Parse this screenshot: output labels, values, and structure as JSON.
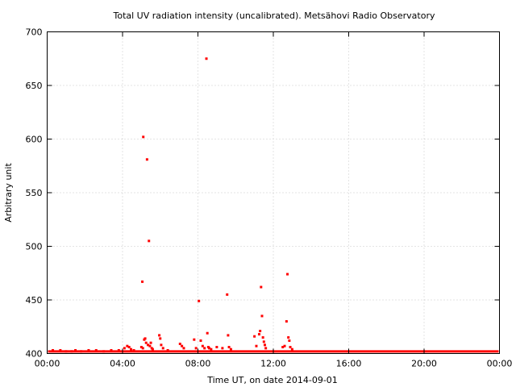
{
  "chart_data": {
    "type": "scatter",
    "title": "Total UV radiation intensity (uncalibrated). Metsähovi Radio Observatory",
    "xlabel": "Time UT, on date 2014-09-01",
    "ylabel": "Arbitrary unit",
    "xlim": [
      0,
      24
    ],
    "ylim": [
      400,
      700
    ],
    "x_ticks": [
      {
        "value": 0,
        "label": "00:00"
      },
      {
        "value": 4,
        "label": "04:00"
      },
      {
        "value": 8,
        "label": "08:00"
      },
      {
        "value": 12,
        "label": "12:00"
      },
      {
        "value": 16,
        "label": "16:00"
      },
      {
        "value": 20,
        "label": "20:00"
      },
      {
        "value": 24,
        "label": "00:00"
      }
    ],
    "y_ticks": [
      {
        "value": 400,
        "label": "400"
      },
      {
        "value": 450,
        "label": "450"
      },
      {
        "value": 500,
        "label": "500"
      },
      {
        "value": 550,
        "label": "550"
      },
      {
        "value": 600,
        "label": "600"
      },
      {
        "value": 650,
        "label": "650"
      },
      {
        "value": 700,
        "label": "700"
      }
    ],
    "grid": true,
    "marker_color": "#ff0000",
    "baseline": {
      "x_start": 0,
      "x_end": 24,
      "y": 402
    },
    "points": [
      {
        "x": 0.3,
        "y": 403
      },
      {
        "x": 0.7,
        "y": 403
      },
      {
        "x": 1.0,
        "y": 402
      },
      {
        "x": 1.3,
        "y": 402
      },
      {
        "x": 1.5,
        "y": 403
      },
      {
        "x": 1.8,
        "y": 402
      },
      {
        "x": 2.2,
        "y": 403
      },
      {
        "x": 2.6,
        "y": 403
      },
      {
        "x": 3.0,
        "y": 402
      },
      {
        "x": 3.4,
        "y": 403
      },
      {
        "x": 3.8,
        "y": 403
      },
      {
        "x": 4.1,
        "y": 405
      },
      {
        "x": 4.25,
        "y": 407
      },
      {
        "x": 4.35,
        "y": 406
      },
      {
        "x": 4.45,
        "y": 404
      },
      {
        "x": 4.6,
        "y": 403
      },
      {
        "x": 5.05,
        "y": 467
      },
      {
        "x": 5.1,
        "y": 602
      },
      {
        "x": 5.15,
        "y": 413
      },
      {
        "x": 5.2,
        "y": 414
      },
      {
        "x": 5.25,
        "y": 410
      },
      {
        "x": 5.3,
        "y": 581
      },
      {
        "x": 5.35,
        "y": 408
      },
      {
        "x": 5.4,
        "y": 505
      },
      {
        "x": 5.45,
        "y": 407
      },
      {
        "x": 5.5,
        "y": 410
      },
      {
        "x": 5.55,
        "y": 405
      },
      {
        "x": 5.6,
        "y": 404
      },
      {
        "x": 5.0,
        "y": 406
      },
      {
        "x": 5.08,
        "y": 405
      },
      {
        "x": 5.95,
        "y": 417
      },
      {
        "x": 6.0,
        "y": 414
      },
      {
        "x": 6.05,
        "y": 408
      },
      {
        "x": 6.15,
        "y": 405
      },
      {
        "x": 6.4,
        "y": 403
      },
      {
        "x": 7.05,
        "y": 409
      },
      {
        "x": 7.15,
        "y": 407
      },
      {
        "x": 7.25,
        "y": 405
      },
      {
        "x": 7.8,
        "y": 413
      },
      {
        "x": 7.9,
        "y": 405
      },
      {
        "x": 8.05,
        "y": 449
      },
      {
        "x": 8.15,
        "y": 412
      },
      {
        "x": 8.25,
        "y": 407
      },
      {
        "x": 8.35,
        "y": 405
      },
      {
        "x": 8.45,
        "y": 675
      },
      {
        "x": 8.5,
        "y": 419
      },
      {
        "x": 8.55,
        "y": 406
      },
      {
        "x": 8.6,
        "y": 405
      },
      {
        "x": 8.7,
        "y": 404
      },
      {
        "x": 9.0,
        "y": 406
      },
      {
        "x": 9.3,
        "y": 405
      },
      {
        "x": 9.55,
        "y": 455
      },
      {
        "x": 9.6,
        "y": 417
      },
      {
        "x": 9.65,
        "y": 406
      },
      {
        "x": 9.75,
        "y": 404
      },
      {
        "x": 11.0,
        "y": 416
      },
      {
        "x": 11.1,
        "y": 407
      },
      {
        "x": 11.25,
        "y": 418
      },
      {
        "x": 11.3,
        "y": 421
      },
      {
        "x": 11.35,
        "y": 462
      },
      {
        "x": 11.4,
        "y": 435
      },
      {
        "x": 11.45,
        "y": 415
      },
      {
        "x": 11.5,
        "y": 411
      },
      {
        "x": 11.55,
        "y": 408
      },
      {
        "x": 11.6,
        "y": 405
      },
      {
        "x": 12.5,
        "y": 406
      },
      {
        "x": 12.6,
        "y": 407
      },
      {
        "x": 12.7,
        "y": 430
      },
      {
        "x": 12.75,
        "y": 474
      },
      {
        "x": 12.8,
        "y": 415
      },
      {
        "x": 12.85,
        "y": 412
      },
      {
        "x": 12.9,
        "y": 406
      },
      {
        "x": 13.0,
        "y": 404
      }
    ]
  }
}
